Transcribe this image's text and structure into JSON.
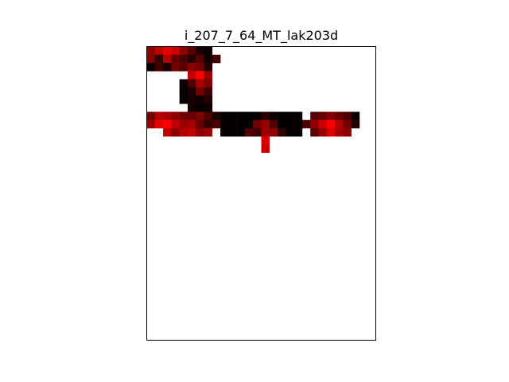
{
  "chart_data": {
    "type": "heatmap",
    "title": "i_207_7_64_MT_lak203d",
    "xlabel": "",
    "ylabel": "",
    "axes_ticks": "off",
    "grid": false,
    "legend": "none",
    "n_cols": 28,
    "n_rows": 36,
    "colormap": [
      "#000000",
      "#ff0000"
    ],
    "value_range": [
      0,
      1
    ],
    "cells": [
      [
        0,
        0,
        0.55
      ],
      [
        0,
        1,
        0.75
      ],
      [
        0,
        2,
        0.9
      ],
      [
        0,
        3,
        0.8
      ],
      [
        0,
        4,
        0.55
      ],
      [
        0,
        5,
        0.35
      ],
      [
        0,
        6,
        0.1
      ],
      [
        0,
        7,
        0.05
      ],
      [
        1,
        0,
        0.5
      ],
      [
        1,
        1,
        0.2
      ],
      [
        1,
        2,
        0.7
      ],
      [
        1,
        3,
        0.4
      ],
      [
        1,
        4,
        0.3
      ],
      [
        1,
        5,
        0.15
      ],
      [
        1,
        6,
        0.35
      ],
      [
        1,
        7,
        0.05
      ],
      [
        1,
        8,
        0.25
      ],
      [
        2,
        0,
        0.05
      ],
      [
        2,
        1,
        0.25
      ],
      [
        2,
        2,
        0.1
      ],
      [
        2,
        3,
        0.45
      ],
      [
        2,
        4,
        0.35
      ],
      [
        2,
        5,
        0.55
      ],
      [
        2,
        6,
        0.45
      ],
      [
        2,
        7,
        0.15
      ],
      [
        3,
        5,
        0.75
      ],
      [
        3,
        6,
        1.0
      ],
      [
        3,
        7,
        0.6
      ],
      [
        4,
        4,
        0.05
      ],
      [
        4,
        5,
        0.3
      ],
      [
        4,
        6,
        0.65
      ],
      [
        4,
        7,
        0.5
      ],
      [
        5,
        4,
        0.02
      ],
      [
        5,
        5,
        0.1
      ],
      [
        5,
        6,
        0.45
      ],
      [
        5,
        7,
        0.25
      ],
      [
        6,
        4,
        0.03
      ],
      [
        6,
        5,
        0.1
      ],
      [
        6,
        6,
        0.05
      ],
      [
        6,
        7,
        0.15
      ],
      [
        7,
        5,
        0.08
      ],
      [
        7,
        6,
        0.02
      ],
      [
        7,
        7,
        0.05
      ],
      [
        8,
        0,
        0.45
      ],
      [
        8,
        1,
        0.7
      ],
      [
        8,
        2,
        0.65
      ],
      [
        8,
        3,
        0.55
      ],
      [
        8,
        4,
        0.45
      ],
      [
        8,
        5,
        0.4
      ],
      [
        8,
        6,
        0.5
      ],
      [
        8,
        7,
        0.3
      ],
      [
        8,
        8,
        0.1
      ],
      [
        8,
        9,
        0.02
      ],
      [
        8,
        10,
        0.02
      ],
      [
        8,
        11,
        0.02
      ],
      [
        8,
        12,
        0.02
      ],
      [
        8,
        13,
        0.02
      ],
      [
        8,
        14,
        0.15
      ],
      [
        8,
        15,
        0.05
      ],
      [
        8,
        16,
        0.02
      ],
      [
        8,
        17,
        0.02
      ],
      [
        8,
        18,
        0.02
      ],
      [
        8,
        20,
        0.35
      ],
      [
        8,
        21,
        0.4
      ],
      [
        8,
        22,
        0.5
      ],
      [
        8,
        23,
        0.4
      ],
      [
        8,
        24,
        0.3
      ],
      [
        8,
        25,
        0.05
      ],
      [
        9,
        0,
        0.6
      ],
      [
        9,
        1,
        0.9
      ],
      [
        9,
        2,
        1.0
      ],
      [
        9,
        3,
        0.75
      ],
      [
        9,
        4,
        0.6
      ],
      [
        9,
        5,
        0.65
      ],
      [
        9,
        6,
        0.4
      ],
      [
        9,
        7,
        0.2
      ],
      [
        9,
        8,
        0.3
      ],
      [
        9,
        9,
        0.02
      ],
      [
        9,
        10,
        0.02
      ],
      [
        9,
        11,
        0.02
      ],
      [
        9,
        12,
        0.02
      ],
      [
        9,
        13,
        0.45
      ],
      [
        9,
        14,
        0.6
      ],
      [
        9,
        15,
        0.3
      ],
      [
        9,
        16,
        0.02
      ],
      [
        9,
        17,
        0.02
      ],
      [
        9,
        18,
        0.02
      ],
      [
        9,
        19,
        0.3
      ],
      [
        9,
        20,
        0.55
      ],
      [
        9,
        21,
        0.8
      ],
      [
        9,
        22,
        1.0
      ],
      [
        9,
        23,
        0.7
      ],
      [
        9,
        24,
        0.45
      ],
      [
        9,
        25,
        0.15
      ],
      [
        10,
        2,
        0.75
      ],
      [
        10,
        3,
        0.55
      ],
      [
        10,
        4,
        0.7
      ],
      [
        10,
        5,
        0.75
      ],
      [
        10,
        6,
        0.55
      ],
      [
        10,
        7,
        0.6
      ],
      [
        10,
        9,
        0.02
      ],
      [
        10,
        10,
        0.02
      ],
      [
        10,
        11,
        0.02
      ],
      [
        10,
        12,
        0.3
      ],
      [
        10,
        13,
        0.25
      ],
      [
        10,
        14,
        0.6
      ],
      [
        10,
        15,
        0.55
      ],
      [
        10,
        16,
        0.2
      ],
      [
        10,
        17,
        0.02
      ],
      [
        10,
        18,
        0.02
      ],
      [
        10,
        20,
        0.35
      ],
      [
        10,
        21,
        0.6
      ],
      [
        10,
        22,
        0.85
      ],
      [
        10,
        23,
        0.65
      ],
      [
        10,
        24,
        0.55
      ],
      [
        11,
        14,
        0.85
      ],
      [
        12,
        14,
        0.8
      ]
    ]
  }
}
